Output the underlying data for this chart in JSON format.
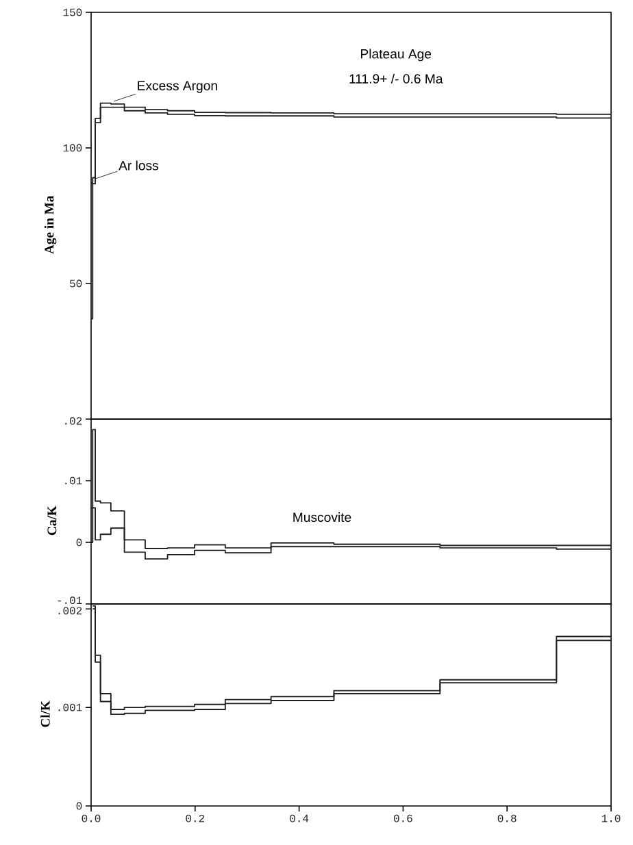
{
  "chart_data": [
    {
      "type": "step",
      "ylabel": "Age in Ma",
      "xlim": [
        0,
        1
      ],
      "ylim": [
        0,
        150
      ],
      "yticks": [
        50,
        100,
        150
      ],
      "tick_labels": "y",
      "x": [
        0,
        0.003,
        0.008,
        0.018,
        0.038,
        0.064,
        0.104,
        0.147,
        0.199,
        0.258,
        0.346,
        0.467,
        0.671,
        0.895,
        1.0
      ],
      "series": [
        {
          "color": "#231f20",
          "values": [
            87,
            89,
            110.9,
            116.5,
            116.2,
            115.0,
            114.1,
            113.7,
            113.1,
            113.0,
            112.9,
            112.6,
            112.6,
            112.4,
            112.4
          ]
        },
        {
          "color": "#231f20",
          "values": [
            37,
            86.8,
            109.3,
            115.0,
            115.0,
            113.7,
            112.9,
            112.4,
            111.9,
            111.8,
            111.8,
            111.4,
            111.4,
            111.0,
            111.0
          ]
        }
      ],
      "annotations": [
        {
          "text": "Excess Argon",
          "x": 0.04,
          "y": 116.5
        },
        {
          "text": "Ar loss",
          "x": 0.005,
          "y": 88
        },
        "Plateau Age",
        "111.9+ /- 0.6 Ma"
      ]
    },
    {
      "type": "step",
      "ylabel": "Ca/K",
      "xlim": [
        0,
        1
      ],
      "ylim": [
        -0.01,
        0.02
      ],
      "yticks": [
        {
          "value": -0.01,
          "label": "-.01"
        },
        {
          "value": 0,
          "label": "0"
        },
        {
          "value": 0.01,
          "label": ".01"
        },
        {
          "value": 0.02,
          "label": ".02"
        }
      ],
      "tick_labels": "y",
      "x": [
        0,
        0.003,
        0.008,
        0.018,
        0.038,
        0.064,
        0.104,
        0.147,
        0.199,
        0.258,
        0.346,
        0.467,
        0.671,
        0.895,
        1.0
      ],
      "series": [
        {
          "color": "#231f20",
          "values": [
            0.0056,
            0.0183,
            0.0067,
            0.0064,
            0.0051,
            0.0004,
            -0.001,
            -0.0009,
            -0.0004,
            -0.0009,
            -0.0001,
            -0.0003,
            -0.0005,
            -0.0005,
            -0.0005
          ]
        },
        {
          "color": "#231f20",
          "values": [
            0.0,
            0.0056,
            0.0004,
            0.0013,
            0.0023,
            -0.0016,
            -0.0027,
            -0.002,
            -0.0013,
            -0.0017,
            -0.0007,
            -0.0007,
            -0.0009,
            -0.0011,
            -0.0011
          ]
        }
      ],
      "annotations": [
        "Muscovite"
      ]
    },
    {
      "type": "step",
      "ylabel": "Cl/K",
      "xlim": [
        0,
        1
      ],
      "ylim": [
        0,
        0.00205
      ],
      "yticks": [
        {
          "value": 0,
          "label": "0"
        },
        {
          "value": 0.001,
          "label": ".001"
        },
        {
          "value": 0.002,
          "label": ".002"
        }
      ],
      "xticks": [
        {
          "value": 0,
          "label": "0.0"
        },
        {
          "value": 0.2,
          "label": "0.2"
        },
        {
          "value": 0.4,
          "label": "0.4"
        },
        {
          "value": 0.6,
          "label": "0.6"
        },
        {
          "value": 0.8,
          "label": "0.8"
        },
        {
          "value": 1.0,
          "label": "1.0"
        }
      ],
      "series": [
        {
          "color": "#231f20",
          "x": [
            0.003,
            0.008,
            0.018,
            0.038,
            0.064,
            0.104,
            0.147,
            0.199,
            0.258,
            0.346,
            0.467,
            0.671,
            0.895,
            1.0
          ],
          "values": [
            0.00203,
            0.00153,
            0.00114,
            0.00098,
            0.001,
            0.00101,
            0.00101,
            0.00103,
            0.00108,
            0.00111,
            0.00117,
            0.00128,
            0.00172,
            0.00172
          ]
        },
        {
          "color": "#231f20",
          "x": [
            0.003,
            0.008,
            0.018,
            0.038,
            0.064,
            0.104,
            0.147,
            0.199,
            0.258,
            0.346,
            0.467,
            0.671,
            0.895,
            1.0
          ],
          "values": [
            0.002,
            0.00146,
            0.00106,
            0.00093,
            0.00094,
            0.00097,
            0.00097,
            0.00098,
            0.00104,
            0.00107,
            0.00114,
            0.00125,
            0.00168,
            0.00168
          ]
        }
      ]
    }
  ]
}
